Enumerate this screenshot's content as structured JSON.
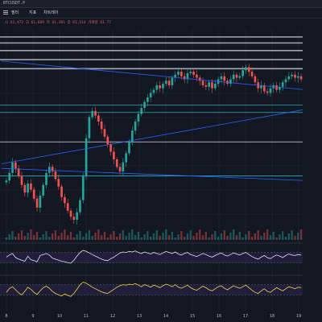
{
  "window": {
    "title": "BTCUSDT.P"
  },
  "toolbar": {
    "items": [
      {
        "label": "필터",
        "name": "filter-button"
      },
      {
        "label": "지표",
        "name": "indicators-button"
      },
      {
        "label": "차트레이",
        "name": "chart-layout-button"
      }
    ]
  },
  "legend": {
    "text": "시 61,472 고 61,609 저 61,381 종 61,514 거래량 61.77"
  },
  "colors": {
    "background": "#131722",
    "up": "#26a69a",
    "down": "#ef5350",
    "trendline": "#2962ff",
    "level": "#d1d4dc",
    "support": "#26c6da",
    "rsi": "#e0e3eb",
    "stoch": "#f5d742",
    "panel_band": "#2b2550"
  },
  "chart_data": [
    {
      "type": "candlestick",
      "title": "",
      "xlabel": "",
      "ylabel": "",
      "grid": true,
      "x_ticks": [
        "8",
        "9",
        "10",
        "11",
        "12",
        "13",
        "14",
        "15",
        "16",
        "17",
        "18",
        "19"
      ],
      "ylim": [
        55000,
        68000
      ],
      "close_values": [
        58400,
        58900,
        59600,
        59200,
        58700,
        58100,
        57600,
        58200,
        57800,
        57200,
        56600,
        57400,
        58100,
        58900,
        59300,
        59000,
        58500,
        58000,
        57300,
        56900,
        56400,
        56000,
        55800,
        56300,
        57100,
        58700,
        61200,
        62600,
        63000,
        62700,
        62300,
        61800,
        61300,
        60800,
        60300,
        59800,
        59300,
        59000,
        59600,
        60200,
        60900,
        61700,
        62300,
        62800,
        63200,
        63600,
        63900,
        64200,
        64400,
        64700,
        64500,
        64800,
        65000,
        64700,
        65200,
        65400,
        65600,
        65300,
        65100,
        65500,
        65600,
        65400,
        65200,
        65000,
        64700,
        64600,
        64900,
        64500,
        64800,
        65100,
        65300,
        65000,
        64800,
        65100,
        65400,
        65200,
        65300,
        65700,
        65900,
        65600,
        65300,
        64900,
        64500,
        64700,
        64300,
        64200,
        64500,
        64700,
        64400,
        64600,
        64900,
        65100,
        65300,
        65400,
        65200,
        65300,
        65100
      ],
      "horizontal_levels": [
        67900,
        67500,
        67000,
        66400,
        65800,
        63400,
        62900,
        60950,
        58700
      ],
      "level_labels": [
        "",
        "",
        "",
        "",
        "",
        "",
        "",
        "",
        ""
      ],
      "trendlines": [
        {
          "from": [
            0,
            66300
          ],
          "to": [
            96,
            64300
          ]
        },
        {
          "from": [
            0,
            59200
          ],
          "to": [
            96,
            58350
          ]
        },
        {
          "from": [
            0,
            59500
          ],
          "to": [
            96,
            63300
          ]
        }
      ]
    },
    {
      "type": "line",
      "name": "RSI",
      "ylim": [
        0,
        100
      ],
      "values": [
        52,
        60,
        66,
        50,
        44,
        40,
        36,
        55,
        42,
        38,
        34,
        58,
        62,
        66,
        60,
        48,
        44,
        40,
        36,
        34,
        30,
        28,
        40,
        56,
        70,
        78,
        74,
        68,
        62,
        56,
        50,
        44,
        40,
        38,
        46,
        52,
        60,
        68,
        72,
        70,
        74,
        72,
        76,
        70,
        66,
        72,
        68,
        64,
        70,
        66,
        62,
        68,
        74,
        70,
        66,
        72,
        64,
        60,
        66,
        70,
        62,
        58,
        54,
        60,
        66,
        62,
        56,
        52,
        58,
        64,
        68,
        60,
        56,
        62,
        68,
        64,
        60,
        66,
        70,
        62,
        54,
        48,
        44,
        52,
        58,
        50,
        46,
        54,
        60,
        56,
        50,
        58,
        64,
        60,
        58,
        62,
        60
      ]
    },
    {
      "type": "line",
      "name": "Stoch",
      "ylim": [
        0,
        100
      ],
      "values": [
        40,
        55,
        62,
        50,
        38,
        30,
        44,
        60,
        52,
        40,
        32,
        46,
        58,
        64,
        56,
        44,
        36,
        30,
        26,
        34,
        28,
        24,
        36,
        52,
        70,
        80,
        76,
        68,
        60,
        54,
        48,
        42,
        38,
        36,
        44,
        52,
        60,
        66,
        70,
        68,
        72,
        70,
        74,
        68,
        62,
        70,
        66,
        60,
        68,
        64,
        58,
        66,
        72,
        68,
        62,
        70,
        60,
        56,
        62,
        68,
        58,
        52,
        48,
        56,
        64,
        58,
        50,
        46,
        54,
        62,
        66,
        56,
        50,
        58,
        66,
        60,
        56,
        62,
        68,
        58,
        48,
        40,
        36,
        46,
        54,
        44,
        40,
        50,
        58,
        52,
        46,
        54,
        62,
        58,
        54,
        60,
        58
      ]
    }
  ]
}
